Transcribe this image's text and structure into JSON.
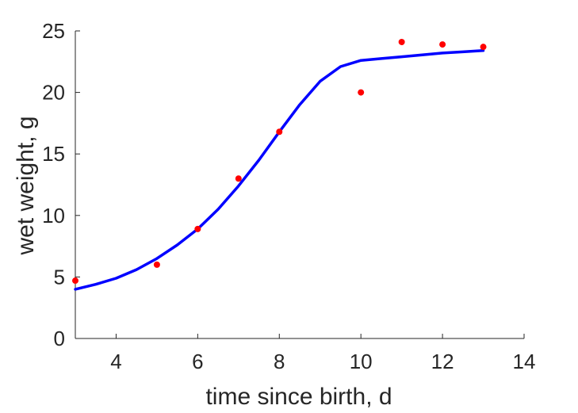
{
  "chart_data": {
    "type": "scatter",
    "title": "",
    "xlabel": "time since birth, d",
    "ylabel": "wet weight, g",
    "xlim": [
      3,
      14
    ],
    "ylim": [
      0,
      25
    ],
    "xticks": [
      4,
      6,
      8,
      10,
      12,
      14
    ],
    "yticks": [
      0,
      5,
      10,
      15,
      20,
      25
    ],
    "grid": false,
    "legend": "none",
    "series": [
      {
        "kind": "markers",
        "color": "#ff0000",
        "x": [
          3,
          5,
          6,
          7,
          8,
          10,
          11,
          12,
          13
        ],
        "y": [
          4.7,
          6.0,
          8.9,
          13.0,
          16.8,
          20.0,
          24.1,
          23.9,
          23.7
        ]
      },
      {
        "kind": "line",
        "color": "#0000ff",
        "x": [
          3,
          3.5,
          4,
          4.5,
          5,
          5.5,
          6,
          6.5,
          7,
          7.5,
          8,
          8.5,
          9,
          9.5,
          10,
          10.5,
          11,
          11.5,
          12,
          12.5,
          13
        ],
        "y": [
          4.0,
          4.4,
          4.9,
          5.6,
          6.5,
          7.6,
          8.9,
          10.5,
          12.4,
          14.5,
          16.8,
          19.0,
          20.9,
          22.1,
          22.6,
          22.75,
          22.9,
          23.05,
          23.2,
          23.3,
          23.4
        ]
      }
    ]
  }
}
